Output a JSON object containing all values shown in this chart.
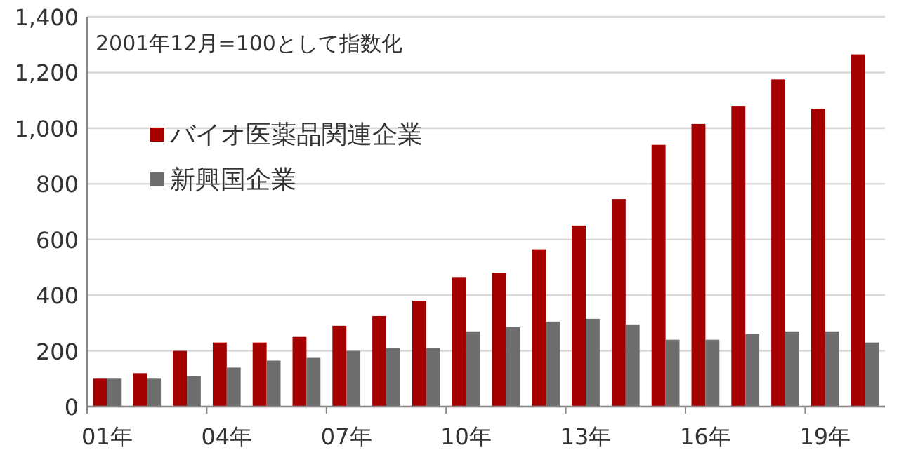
{
  "chart_data": {
    "type": "bar",
    "categories": [
      "01年",
      null,
      null,
      "04年",
      null,
      null,
      "07年",
      null,
      null,
      "10年",
      null,
      null,
      "13年",
      null,
      null,
      "16年",
      null,
      null,
      "19年",
      null
    ],
    "series": [
      {
        "name": "バイオ医薬品関連企業",
        "color": "#a50000",
        "values": [
          100,
          120,
          200,
          230,
          230,
          250,
          290,
          325,
          380,
          465,
          480,
          565,
          650,
          745,
          940,
          1015,
          1080,
          1175,
          1070,
          1265
        ]
      },
      {
        "name": "新興国企業",
        "color": "#6e6e6e",
        "values": [
          100,
          100,
          110,
          140,
          165,
          175,
          200,
          210,
          210,
          270,
          285,
          305,
          315,
          295,
          240,
          240,
          260,
          270,
          270,
          230
        ]
      }
    ],
    "ylim": [
      0,
      1400
    ],
    "yticks": [
      0,
      200,
      400,
      600,
      800,
      {
        "value": 1000,
        "label": "1,000"
      },
      {
        "value": 1200,
        "label": "1,200"
      },
      {
        "value": 1400,
        "label": "1,400"
      }
    ],
    "grid": "y",
    "legend": "left",
    "annotations": [
      "2001年12月=100として指数化"
    ]
  }
}
